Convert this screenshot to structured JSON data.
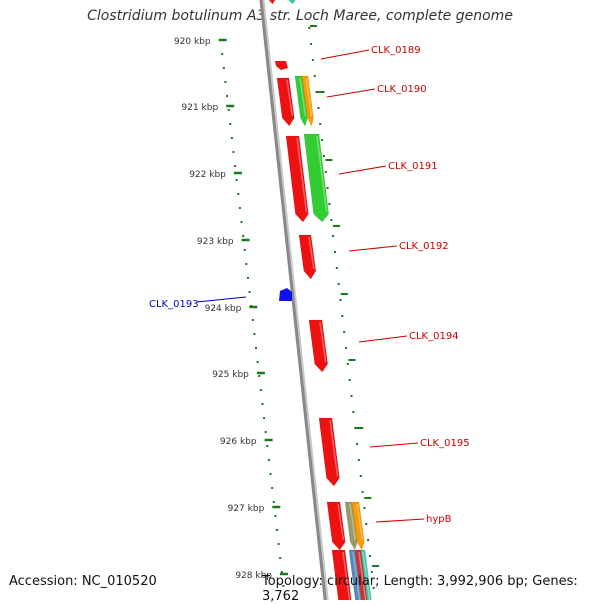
{
  "title": "Clostridium botulinum A3 str. Loch Maree, complete genome",
  "accession": "Accession: NC_010520",
  "stats": "Topology: circular; Length: 3,992,906 bp; Genes: 3,762",
  "colors": {
    "backbone": "#888888",
    "tick": "#1a7a1a",
    "gene_red": "#ee1111",
    "gene_green": "#33cc33",
    "gene_orange": "#ff9900",
    "gene_blue": "#1111ee",
    "gene_teal": "#33ccaa",
    "gene_olive": "#999966",
    "gene_steelblue": "#5588bb",
    "label_red": "#cc0000",
    "label_blue": "#0000cc"
  },
  "kbp_markers": [
    "920 kbp",
    "921 kbp",
    "922 kbp",
    "923 kbp",
    "924 kbp",
    "925 kbp",
    "926 kbp",
    "927 kbp",
    "928 kbp"
  ],
  "gene_labels": [
    {
      "name": "CLK_0189",
      "color": "red"
    },
    {
      "name": "CLK_0190",
      "color": "red"
    },
    {
      "name": "CLK_0191",
      "color": "red"
    },
    {
      "name": "CLK_0192",
      "color": "red"
    },
    {
      "name": "CLK_0193",
      "color": "blue"
    },
    {
      "name": "CLK_0194",
      "color": "red"
    },
    {
      "name": "CLK_0195",
      "color": "red"
    },
    {
      "name": "hypB",
      "color": "red"
    }
  ]
}
